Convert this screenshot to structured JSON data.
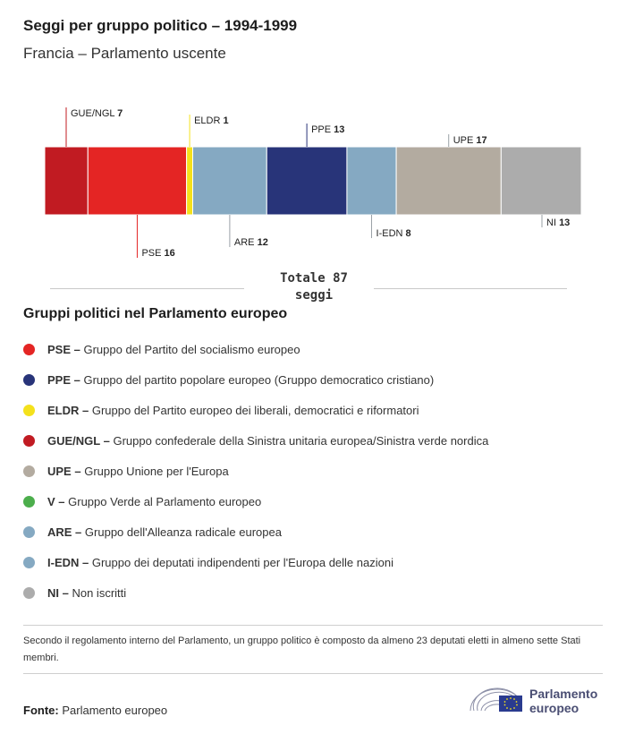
{
  "title": "Seggi per gruppo politico – 1994-1999",
  "subtitle": "Francia – Parlamento uscente",
  "chart_data": {
    "type": "bar",
    "orientation": "horizontal-stacked",
    "title": "Seggi per gruppo politico – 1994-1999",
    "subtitle": "Francia – Parlamento uscente",
    "categories": [
      "GUE/NGL",
      "PSE",
      "ELDR",
      "ARE",
      "PPE",
      "I-EDN",
      "UPE",
      "NI"
    ],
    "values": [
      7,
      16,
      1,
      12,
      13,
      8,
      17,
      13
    ],
    "colors": [
      "#c11b22",
      "#e42524",
      "#f4e11c",
      "#85a9c2",
      "#283479",
      "#85a9c2",
      "#b3aba0",
      "#acacac"
    ],
    "label_side": [
      "top",
      "bottom",
      "top",
      "bottom",
      "top",
      "bottom",
      "top",
      "bottom"
    ],
    "total_label": "Totale 87\nseggi"
  },
  "legend": {
    "title": "Gruppi politici nel Parlamento europeo",
    "items": [
      {
        "abbr": "PSE –",
        "desc": "Gruppo del Partito del socialismo europeo",
        "color": "#e42524"
      },
      {
        "abbr": "PPE –",
        "desc": "Gruppo del partito popolare europeo (Gruppo democratico cristiano)",
        "color": "#283479"
      },
      {
        "abbr": "ELDR –",
        "desc": "Gruppo del Partito europeo dei liberali, democratici e riformatori",
        "color": "#f4e11c"
      },
      {
        "abbr": "GUE/NGL –",
        "desc": "Gruppo confederale della Sinistra unitaria europea/Sinistra verde nordica",
        "color": "#c11b22"
      },
      {
        "abbr": "UPE –",
        "desc": "Gruppo Unione per l'Europa",
        "color": "#b3aba0"
      },
      {
        "abbr": "V –",
        "desc": "Gruppo Verde al Parlamento europeo",
        "color": "#4cae4c"
      },
      {
        "abbr": "ARE –",
        "desc": "Gruppo dell'Alleanza radicale europea",
        "color": "#85a9c2"
      },
      {
        "abbr": "I-EDN –",
        "desc": "Gruppo dei deputati indipendenti per l'Europa delle nazioni",
        "color": "#85a9c2"
      },
      {
        "abbr": "NI –",
        "desc": "Non iscritti",
        "color": "#acacac"
      }
    ]
  },
  "note": "Secondo il regolamento interno del Parlamento, un gruppo politico è composto da almeno 23 deputati eletti in almeno sette Stati membri.",
  "source_label": "Fonte:",
  "source_value": "Parlamento europeo",
  "logo": {
    "line1": "Parlamento",
    "line2": "europeo",
    "icon": "european-parliament-logo"
  }
}
